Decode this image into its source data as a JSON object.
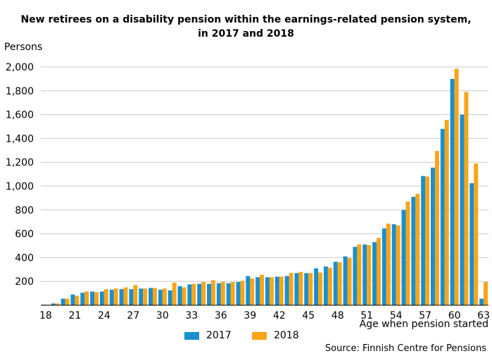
{
  "chart_data": {
    "type": "bar",
    "title_line1": "New retirees on a disability pension within the earnings-related pension system,",
    "title_line2": "in 2017 and 2018",
    "ylabel": "Persons",
    "xlabel": "Age when pension started",
    "source": "Source: Finnish Centre for Pensions",
    "ylim": [
      0,
      2000
    ],
    "yticks": [
      "2,000",
      "1,800",
      "1,600",
      "1,400",
      "1,200",
      "1,000",
      "800",
      "600",
      "400",
      "200"
    ],
    "grid": true,
    "legend_position": "bottom",
    "categories": [
      "18",
      "19",
      "20",
      "21",
      "22",
      "23",
      "24",
      "25",
      "26",
      "27",
      "28",
      "29",
      "30",
      "31",
      "32",
      "33",
      "34",
      "35",
      "36",
      "37",
      "38",
      "39",
      "40",
      "41",
      "42",
      "43",
      "44",
      "45",
      "46",
      "47",
      "48",
      "49",
      "50",
      "51",
      "52",
      "53",
      "54",
      "55",
      "56",
      "57",
      "58",
      "59",
      "60",
      "61",
      "62",
      "63"
    ],
    "xtick_labels": [
      "18",
      "21",
      "24",
      "27",
      "30",
      "33",
      "36",
      "39",
      "42",
      "45",
      "48",
      "51",
      "54",
      "57",
      "60",
      "63"
    ],
    "series": [
      {
        "name": "2017",
        "color": "#1a8fce",
        "values": [
          5,
          15,
          55,
          90,
          105,
          115,
          115,
          130,
          135,
          135,
          140,
          145,
          130,
          125,
          160,
          175,
          180,
          180,
          185,
          185,
          195,
          245,
          235,
          235,
          240,
          245,
          270,
          270,
          310,
          325,
          365,
          410,
          490,
          510,
          530,
          645,
          680,
          800,
          910,
          1085,
          1155,
          1480,
          1900,
          1600,
          1025,
          55
        ]
      },
      {
        "name": "2018",
        "color": "#f7a519",
        "values": [
          5,
          15,
          55,
          80,
          115,
          110,
          135,
          140,
          150,
          170,
          140,
          145,
          140,
          190,
          150,
          180,
          195,
          210,
          195,
          195,
          205,
          225,
          255,
          235,
          240,
          270,
          280,
          270,
          275,
          315,
          360,
          395,
          510,
          505,
          565,
          685,
          670,
          870,
          935,
          1080,
          1295,
          1555,
          1985,
          1790,
          1190,
          195
        ]
      }
    ]
  }
}
